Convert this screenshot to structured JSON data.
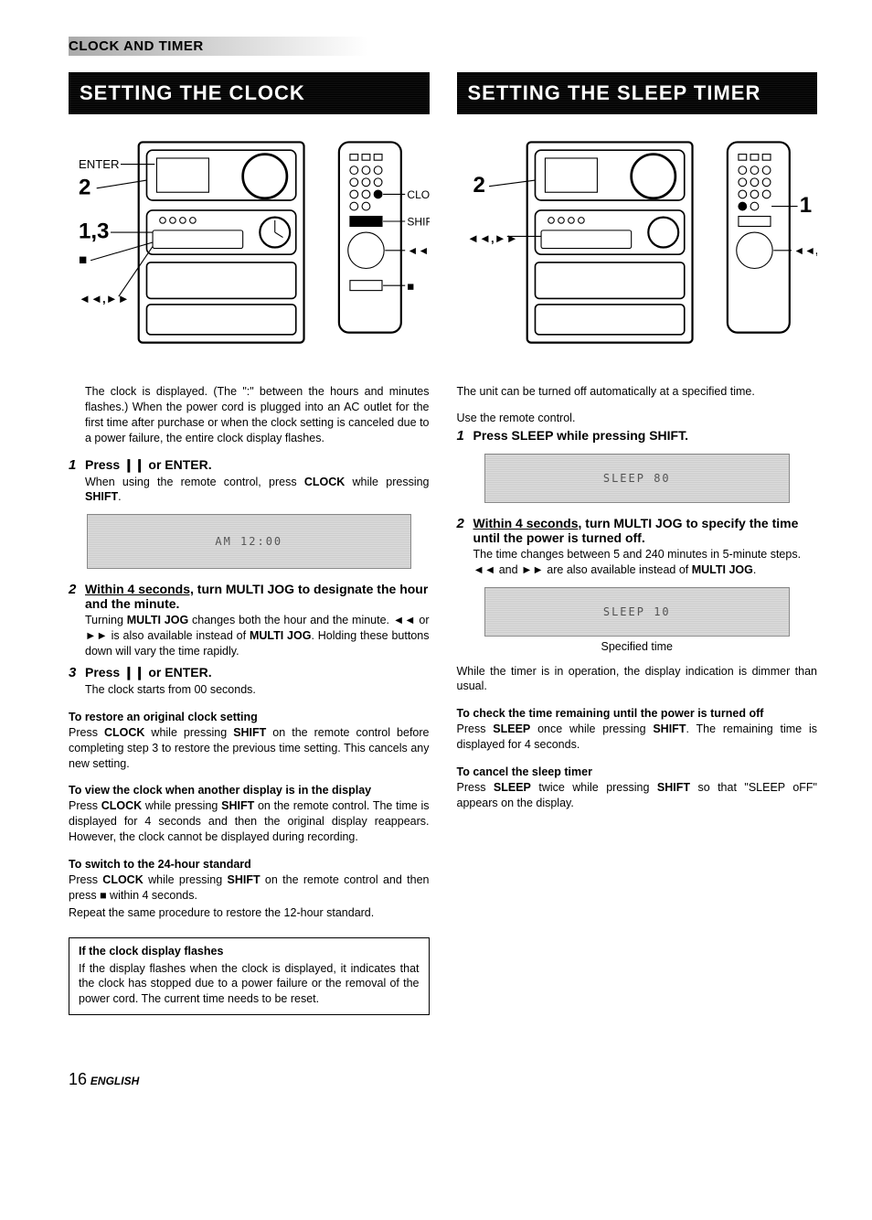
{
  "section_title": "CLOCK AND TIMER",
  "left": {
    "banner": "SETTING THE CLOCK",
    "intro": "The clock is displayed. (The \":\" between the hours and minutes flashes.) When the power cord is plugged into an AC outlet for the first time after purchase or when the clock setting is canceled due to a power failure, the entire clock display flashes.",
    "diagram_labels": {
      "enter": "ENTER",
      "l2": "2",
      "l13": "1,3",
      "stop": "■",
      "rwff": "◄◄,►►",
      "clock": "CLOCK",
      "shift": "SHIFT"
    },
    "display1_text": "AM 12:00",
    "step1": {
      "num": "1",
      "title_prefix": "Press ",
      "title_button": "❙❙",
      "title_mid": " or ",
      "title_button2": "ENTER",
      "title_suffix": ".",
      "desc_pre": "When using the remote control, press ",
      "desc_b1": "CLOCK",
      "desc_mid": " while pressing ",
      "desc_b2": "SHIFT",
      "desc_suffix": "."
    },
    "step2": {
      "num": "2",
      "title_underline": "Within 4 seconds,",
      "title_rest": " turn MULTI JOG to designate the hour and the minute.",
      "desc": "Turning <b>MULTI JOG</b> changes both the hour and the minute. <span class=\"glyph\">◄◄</span> or <span class=\"glyph\">►►</span> is also available instead of <b>MULTI JOG</b>. Holding these buttons down will vary the time rapidly."
    },
    "step3": {
      "num": "3",
      "title": "Press ❙❙ or ENTER.",
      "desc": "The clock starts from 00 seconds."
    },
    "sub1_title": "To restore an original clock setting",
    "sub1_desc": "Press <b>CLOCK</b> while pressing <b>SHIFT</b> on the remote control before completing step 3 to restore the previous time setting. This cancels any new setting.",
    "sub2_title": "To view the clock when another display is in the display",
    "sub2_desc": "Press <b>CLOCK</b> while pressing <b>SHIFT</b> on the remote control. The time is displayed for 4 seconds and then the original display reappears. However, the clock cannot be displayed during recording.",
    "sub3_title": "To switch to the 24-hour standard",
    "sub3_desc": "Press <b>CLOCK</b> while pressing <b>SHIFT</b> on the remote control and then press ■ within 4 seconds.",
    "sub3_desc2": "Repeat the same procedure to restore the 12-hour standard.",
    "inset_title": "If the clock display flashes",
    "inset_desc": "If the display flashes when the clock is displayed, it indicates that the clock has stopped due to a power failure or the removal of the power cord. The current time needs to be reset."
  },
  "right": {
    "banner": "SETTING THE SLEEP TIMER",
    "diagram_labels": {
      "l2": "2",
      "rwff": "◄◄,►►",
      "r1": "1",
      "r_rwff": "◄◄,►►"
    },
    "intro": "The unit can be turned off automatically at a specified time.",
    "use_remote": "Use the remote control.",
    "step1": {
      "num": "1",
      "title": "Press SLEEP while pressing SHIFT."
    },
    "display1_text": "SLEEP   80",
    "step2": {
      "num": "2",
      "title_underline": "Within 4 seconds,",
      "title_rest": " turn MULTI JOG to specify the time until the power is turned off.",
      "desc": "The time changes between 5 and 240 minutes in 5-minute steps.",
      "desc2": "<span class=\"glyph\">◄◄</span> and <span class=\"glyph\">►►</span> are also available instead of <b>MULTI JOG</b>."
    },
    "display2_text": "SLEEP   10",
    "caption": "Specified time",
    "while_timer": "While the timer is in operation, the display indication is dimmer than usual.",
    "sub1_title": "To check the time remaining until the power is turned off",
    "sub1_desc": "Press <b>SLEEP</b> once while pressing <b>SHIFT</b>. The remaining time is displayed for 4 seconds.",
    "sub2_title": "To cancel the sleep timer",
    "sub2_desc": "Press <b>SLEEP</b> twice while pressing <b>SHIFT</b> so that \"SLEEP oFF\" appears on the display."
  },
  "page_num": "16",
  "page_lang": "ENGLISH"
}
